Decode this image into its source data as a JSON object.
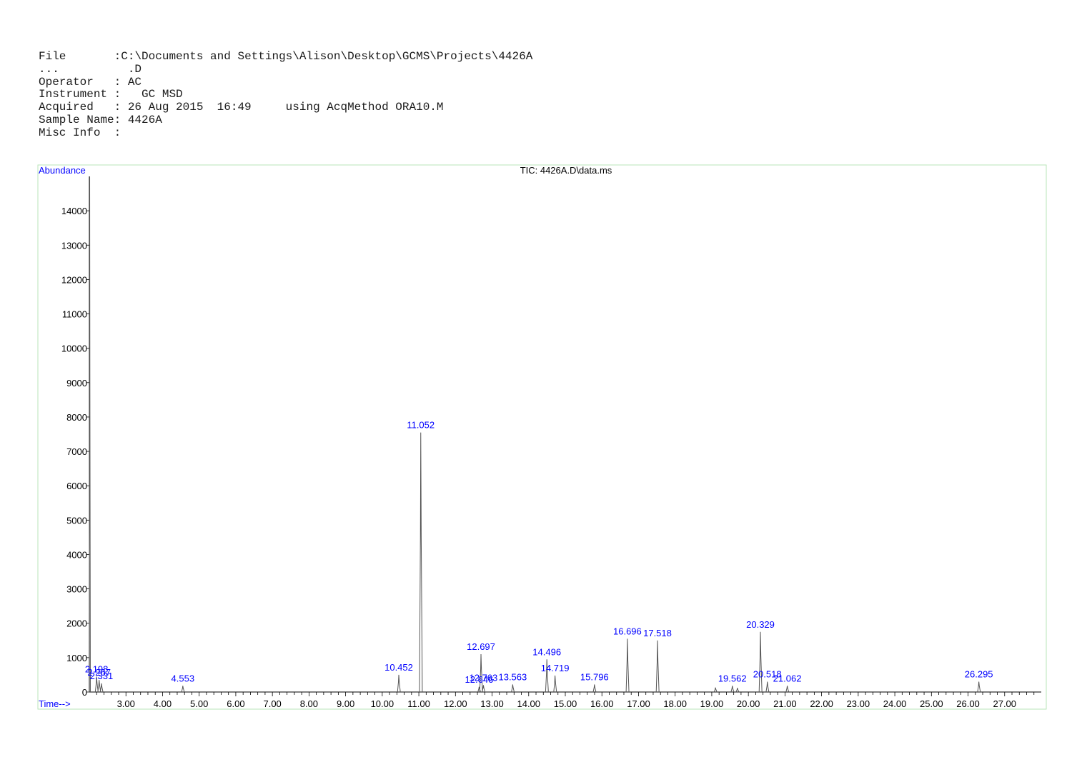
{
  "header": {
    "rows": [
      {
        "label": "File       ",
        "sep": ":",
        "value": "C:\\Documents and Settings\\Alison\\Desktop\\GCMS\\Projects\\4426A",
        "extra": ""
      },
      {
        "label": "...        ",
        "sep": "  ",
        "value": ".D",
        "extra": ""
      },
      {
        "label": "Operator   ",
        "sep": ": ",
        "value": "AC",
        "extra": ""
      },
      {
        "label": "Instrument ",
        "sep": ":   ",
        "value": "GC MSD",
        "extra": ""
      },
      {
        "label": "Acquired   ",
        "sep": ": ",
        "value": "26 Aug 2015  16:49",
        "extra": "     using AcqMethod ORA10.M"
      },
      {
        "label": "Sample Name",
        "sep": ": ",
        "value": "4426A",
        "extra": ""
      },
      {
        "label": "Misc Info  ",
        "sep": ":",
        "value": "",
        "extra": ""
      }
    ]
  },
  "colors": {
    "axis_text": "#0000ff",
    "trace": "#555555",
    "frame": "#b9e6b9",
    "tick_text": "#000000"
  },
  "chart_data": {
    "type": "line",
    "title": "TIC: 4426A.D\\data.ms",
    "ylabel": "Abundance",
    "xlabel": "Time-->",
    "xlim": [
      2.0,
      28.0
    ],
    "ylim": [
      0,
      15000
    ],
    "x_ticks": [
      3,
      4,
      5,
      6,
      7,
      8,
      9,
      10,
      11,
      12,
      13,
      14,
      15,
      16,
      17,
      18,
      19,
      20,
      21,
      22,
      23,
      24,
      25,
      26,
      27
    ],
    "x_tick_labels": [
      "3.00",
      "4.00",
      "5.00",
      "6.00",
      "7.00",
      "8.00",
      "9.00",
      "10.00",
      "11.00",
      "12.00",
      "13.00",
      "14.00",
      "15.00",
      "16.00",
      "17.00",
      "18.00",
      "19.00",
      "20.00",
      "21.00",
      "22.00",
      "23.00",
      "24.00",
      "25.00",
      "26.00",
      "27.00"
    ],
    "y_ticks": [
      0,
      1000,
      2000,
      3000,
      4000,
      5000,
      6000,
      7000,
      8000,
      9000,
      10000,
      11000,
      12000,
      13000,
      14000
    ],
    "y_tick_labels": [
      "0",
      "1000",
      "2000",
      "3000",
      "4000",
      "5000",
      "6000",
      "7000",
      "8000",
      "9000",
      "10000",
      "11000",
      "12000",
      "13000",
      "14000"
    ],
    "peaks": [
      {
        "rt": 2.01,
        "abundance": 15000,
        "label": ""
      },
      {
        "rt": 2.198,
        "abundance": 450,
        "label": "2.198"
      },
      {
        "rt": 2.267,
        "abundance": 350,
        "label": "2.267"
      },
      {
        "rt": 2.331,
        "abundance": 250,
        "label": "2.331"
      },
      {
        "rt": 4.553,
        "abundance": 180,
        "label": "4.553"
      },
      {
        "rt": 10.452,
        "abundance": 500,
        "label": "10.452"
      },
      {
        "rt": 11.052,
        "abundance": 7550,
        "label": "11.052"
      },
      {
        "rt": 12.646,
        "abundance": 150,
        "label": "12.646"
      },
      {
        "rt": 12.697,
        "abundance": 1100,
        "label": "12.697"
      },
      {
        "rt": 12.763,
        "abundance": 200,
        "label": "12.763"
      },
      {
        "rt": 13.563,
        "abundance": 220,
        "label": "13.563"
      },
      {
        "rt": 14.496,
        "abundance": 950,
        "label": "14.496"
      },
      {
        "rt": 14.719,
        "abundance": 480,
        "label": "14.719"
      },
      {
        "rt": 15.796,
        "abundance": 220,
        "label": "15.796"
      },
      {
        "rt": 16.696,
        "abundance": 1550,
        "label": "16.696"
      },
      {
        "rt": 17.518,
        "abundance": 1500,
        "label": "17.518"
      },
      {
        "rt": 19.1,
        "abundance": 130,
        "label": ""
      },
      {
        "rt": 19.562,
        "abundance": 180,
        "label": "19.562"
      },
      {
        "rt": 19.7,
        "abundance": 120,
        "label": ""
      },
      {
        "rt": 20.329,
        "abundance": 1750,
        "label": "20.329"
      },
      {
        "rt": 20.518,
        "abundance": 300,
        "label": "20.518"
      },
      {
        "rt": 21.062,
        "abundance": 180,
        "label": "21.062"
      },
      {
        "rt": 26.295,
        "abundance": 300,
        "label": "26.295"
      }
    ]
  }
}
